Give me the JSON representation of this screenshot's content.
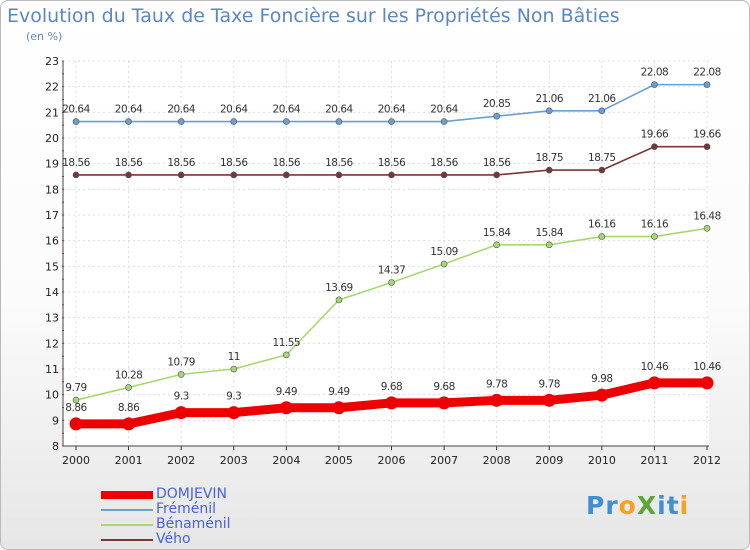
{
  "header": {
    "title": "Evolution du Taux de Taxe Foncière sur les Propriétés Non Bâties",
    "subtitle": "(en %)"
  },
  "logo": {
    "text": "ProXiti",
    "colors": [
      "#3f8fd4",
      "#f7a21b",
      "#5aa832"
    ]
  },
  "chart_data": {
    "type": "line",
    "title": "Evolution du Taux de Taxe Foncière sur les Propriétés Non Bâties",
    "ylabel": "(en %)",
    "ylim": [
      8,
      23
    ],
    "yticks": [
      "8",
      "9",
      "10",
      "11",
      "12",
      "13",
      "14",
      "15",
      "16",
      "17",
      "18",
      "19",
      "20",
      "21",
      "22",
      "23"
    ],
    "grid": true,
    "legend_position": "bottom-left",
    "categories": [
      "2000",
      "2001",
      "2002",
      "2003",
      "2004",
      "2005",
      "2006",
      "2007",
      "2008",
      "2009",
      "2010",
      "2011",
      "2012"
    ],
    "series": [
      {
        "name": "DOMJEVIN",
        "color": "#ee0000",
        "values": [
          8.86,
          8.86,
          9.3,
          9.3,
          9.49,
          9.49,
          9.68,
          9.68,
          9.78,
          9.78,
          9.98,
          10.46,
          10.46
        ],
        "labels": [
          "8.86",
          "8.86",
          "9.3",
          "9.3",
          "9.49",
          "9.49",
          "9.68",
          "9.68",
          "9.78",
          "9.78",
          "9.98",
          "10.46",
          "10.46"
        ]
      },
      {
        "name": "Fréménil",
        "color": "#6a9fd0",
        "values": [
          20.64,
          20.64,
          20.64,
          20.64,
          20.64,
          20.64,
          20.64,
          20.64,
          20.85,
          21.06,
          21.06,
          22.08,
          22.08
        ],
        "labels": [
          "20.64",
          "20.64",
          "20.64",
          "20.64",
          "20.64",
          "20.64",
          "20.64",
          "20.64",
          "20.85",
          "21.06",
          "21.06",
          "22.08",
          "22.08"
        ]
      },
      {
        "name": "Bénaménil",
        "color": "#a6d86e",
        "values": [
          9.79,
          10.28,
          10.79,
          11,
          11.55,
          13.69,
          14.37,
          15.09,
          15.84,
          15.84,
          16.16,
          16.16,
          16.48
        ],
        "labels": [
          "9.79",
          "10.28",
          "10.79",
          "11",
          "11.55",
          "13.69",
          "14.37",
          "15.09",
          "15.84",
          "15.84",
          "16.16",
          "16.16",
          "16.48"
        ]
      },
      {
        "name": "Vého",
        "color": "#7a3535",
        "values": [
          18.56,
          18.56,
          18.56,
          18.56,
          18.56,
          18.56,
          18.56,
          18.56,
          18.56,
          18.75,
          18.75,
          19.66,
          19.66
        ],
        "labels": [
          "18.56",
          "18.56",
          "18.56",
          "18.56",
          "18.56",
          "18.56",
          "18.56",
          "18.56",
          "18.56",
          "18.75",
          "18.75",
          "19.66",
          "19.66"
        ]
      }
    ]
  }
}
